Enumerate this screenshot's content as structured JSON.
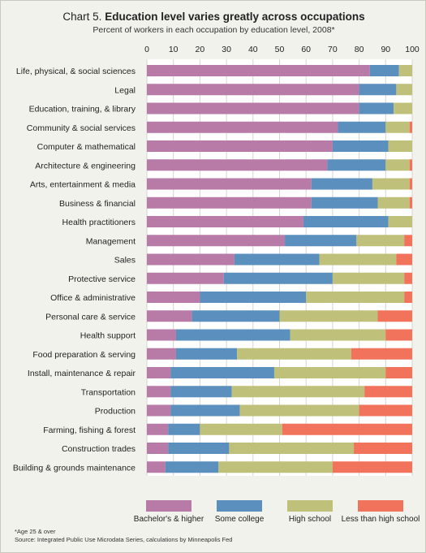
{
  "chart_data": {
    "type": "bar",
    "orientation": "horizontal",
    "stacked": true,
    "title_number": "Chart 5.",
    "title": "Education level varies greatly across occupations",
    "subtitle": "Percent of workers in each occupation by education level, 2008*",
    "xlim": [
      0,
      100
    ],
    "xticks": [
      "0",
      "10",
      "20",
      "30",
      "40",
      "50",
      "60",
      "70",
      "80",
      "90",
      "100"
    ],
    "xaxis_position": "top",
    "grid": true,
    "legend_position": "bottom",
    "categories": [
      "Life, physical, & social sciences",
      "Legal",
      "Education, training, & library",
      "Community & social services",
      "Computer & mathematical",
      "Architecture & engineering",
      "Arts, entertainment & media",
      "Business & financial",
      "Health practitioners",
      "Management",
      "Sales",
      "Protective service",
      "Office & administrative",
      "Personal care & service",
      "Health support",
      "Food preparation & serving",
      "Install, maintenance & repair",
      "Transportation",
      "Production",
      "Farming, fishing & forest",
      "Construction trades",
      "Building & grounds maintenance"
    ],
    "series": [
      {
        "name": "Bachelor's & higher",
        "color": "#b87aa6",
        "values": [
          84,
          80,
          80,
          72,
          70,
          68,
          62,
          62,
          59,
          52,
          33,
          29,
          20,
          17,
          11,
          11,
          9,
          9,
          9,
          8,
          8,
          7
        ]
      },
      {
        "name": "Some college",
        "color": "#5b8fbd",
        "values": [
          11,
          14,
          13,
          18,
          21,
          22,
          23,
          25,
          32,
          27,
          32,
          41,
          40,
          33,
          43,
          23,
          39,
          23,
          26,
          12,
          23,
          20
        ]
      },
      {
        "name": "High school",
        "color": "#bfc07a",
        "values": [
          5,
          6,
          7,
          9,
          9,
          9,
          14,
          12,
          9,
          18,
          29,
          27,
          37,
          37,
          36,
          43,
          42,
          50,
          45,
          31,
          47,
          43
        ]
      },
      {
        "name": "Less than high school",
        "color": "#f1735c",
        "values": [
          0,
          0,
          0.5,
          1,
          0,
          1,
          1,
          1,
          0,
          3,
          6,
          3,
          3,
          13,
          10,
          23,
          10,
          18,
          20,
          49,
          22,
          30
        ]
      }
    ]
  },
  "footnotes": {
    "age_note": "*Age 25 & over",
    "source": "Source: Integrated Public Use Microdata Series, calculations by Minneapolis Fed"
  }
}
